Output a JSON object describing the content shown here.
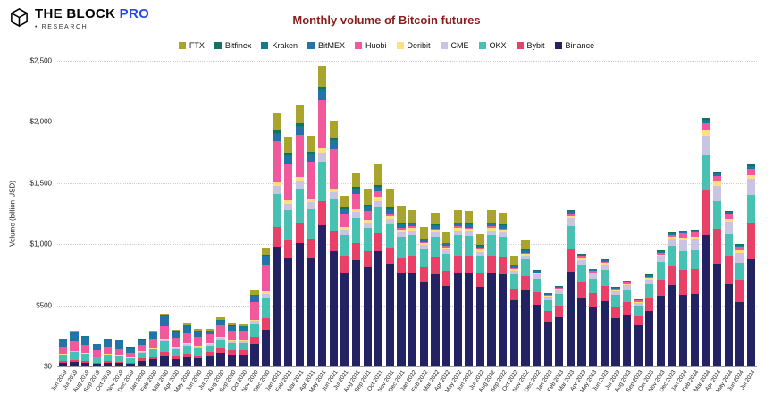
{
  "header": {
    "logo": {
      "brand": "THE BLOCK",
      "brand_accent": "PRO",
      "sub": "• RESEARCH"
    }
  },
  "chart_data": {
    "type": "bar",
    "stacked": true,
    "title": "Monthly volume of Bitcoin futures",
    "xlabel": "",
    "ylabel": "Volume (billion USD)",
    "ylim": [
      0,
      2500
    ],
    "y_ticks": [
      "$0",
      "$500",
      "$1,000",
      "$1,500",
      "$2,000",
      "$2,500"
    ],
    "grid": "horizontal-dotted",
    "legend_position": "top",
    "stack_order_bottom_to_top": [
      "Binance",
      "Bybit",
      "OKX",
      "CME",
      "Deribit",
      "Huobi",
      "BitMEX",
      "Kraken",
      "Bitfinex",
      "FTX"
    ],
    "title_color": "#8b1d1d",
    "categories": [
      "Jun 2019",
      "Jul 2019",
      "Aug 2019",
      "Sep 2019",
      "Oct 2019",
      "Nov 2019",
      "Dec 2019",
      "Jan 2020",
      "Feb 2020",
      "Mar 2020",
      "Apr 2020",
      "May 2020",
      "Jun 2020",
      "Jul 2020",
      "Aug 2020",
      "Sep 2020",
      "Oct 2020",
      "Nov 2020",
      "Dec 2020",
      "Jan 2021",
      "Feb 2021",
      "Mar 2021",
      "Apr 2021",
      "May 2021",
      "Jun 2021",
      "Jul 2021",
      "Aug 2021",
      "Sep 2021",
      "Oct 2021",
      "Nov 2021",
      "Dec 2021",
      "Jan 2022",
      "Feb 2022",
      "Mar 2022",
      "Apr 2022",
      "May 2022",
      "Jun 2022",
      "Jul 2022",
      "Aug 2022",
      "Sep 2022",
      "Oct 2022",
      "Nov 2022",
      "Dec 2022",
      "Jan 2023",
      "Feb 2023",
      "Mar 2023",
      "Apr 2023",
      "May 2023",
      "Jun 2023",
      "Jul 2023",
      "Aug 2023",
      "Sep 2023",
      "Oct 2023",
      "Nov 2023",
      "Dec 2023",
      "Jan 2024",
      "Feb 2024",
      "Mar 2024",
      "Apr 2024",
      "May 2024",
      "Jun 2024",
      "Jul 2024"
    ],
    "series": [
      {
        "name": "FTX",
        "color": "#a9a42b",
        "values": [
          1,
          2,
          2,
          1,
          1,
          2,
          1,
          6,
          7,
          11,
          9,
          11,
          10,
          14,
          18,
          16,
          15,
          31,
          53,
          147,
          133,
          151,
          133,
          171,
          141,
          98,
          111,
          128,
          162,
          151,
          144,
          104,
          92,
          100,
          88,
          104,
          102,
          88,
          104,
          100,
          72,
          74,
          0,
          0,
          0,
          0,
          0,
          0,
          0,
          0,
          0,
          0,
          0,
          0,
          0,
          0,
          0,
          0,
          0,
          0,
          0,
          0
        ]
      },
      {
        "name": "Bitfinex",
        "color": "#15715f",
        "values": [
          2,
          3,
          2,
          2,
          2,
          2,
          2,
          2,
          3,
          4,
          3,
          3,
          3,
          3,
          4,
          3,
          3,
          6,
          9,
          21,
          19,
          21,
          19,
          25,
          20,
          14,
          16,
          15,
          17,
          15,
          13,
          6,
          6,
          6,
          5,
          6,
          6,
          5,
          6,
          6,
          4,
          5,
          4,
          3,
          4,
          10,
          7,
          6,
          7,
          4,
          4,
          3,
          5,
          6,
          7,
          7,
          6,
          12,
          9,
          8,
          6,
          10
        ]
      },
      {
        "name": "Kraken",
        "color": "#0e7e8a",
        "values": [
          1,
          1,
          1,
          1,
          1,
          1,
          1,
          1,
          1,
          2,
          1,
          2,
          1,
          2,
          2,
          2,
          2,
          3,
          5,
          10,
          9,
          11,
          9,
          12,
          10,
          7,
          8,
          7,
          8,
          7,
          7,
          6,
          6,
          6,
          5,
          6,
          6,
          5,
          6,
          6,
          4,
          5,
          4,
          3,
          3,
          6,
          5,
          4,
          5,
          3,
          4,
          3,
          4,
          5,
          6,
          7,
          7,
          12,
          9,
          8,
          6,
          10
        ]
      },
      {
        "name": "BitMEX",
        "color": "#2274a8",
        "values": [
          64,
          81,
          70,
          51,
          64,
          60,
          44,
          44,
          55,
          82,
          54,
          61,
          52,
          31,
          40,
          35,
          34,
          56,
          78,
          62,
          56,
          64,
          57,
          74,
          60,
          28,
          32,
          29,
          33,
          29,
          26,
          19,
          17,
          19,
          17,
          19,
          19,
          16,
          19,
          19,
          14,
          15,
          12,
          6,
          7,
          13,
          9,
          8,
          9,
          7,
          7,
          6,
          8,
          10,
          11,
          9,
          9,
          16,
          13,
          10,
          8,
          13
        ]
      },
      {
        "name": "Huobi",
        "color": "#f2599d",
        "values": [
          60,
          75,
          65,
          48,
          60,
          56,
          42,
          55,
          70,
          103,
          72,
          84,
          73,
          71,
          92,
          80,
          79,
          140,
          210,
          333,
          301,
          342,
          302,
          394,
          322,
          112,
          126,
          73,
          50,
          22,
          13,
          13,
          11,
          13,
          11,
          13,
          13,
          11,
          13,
          13,
          9,
          10,
          8,
          9,
          10,
          19,
          14,
          12,
          13,
          10,
          11,
          8,
          11,
          14,
          17,
          33,
          34,
          61,
          48,
          38,
          30,
          50
        ]
      },
      {
        "name": "Deribit",
        "color": "#ffdf7e",
        "values": [
          5,
          6,
          5,
          4,
          5,
          4,
          3,
          5,
          6,
          9,
          6,
          7,
          6,
          6,
          8,
          7,
          7,
          12,
          19,
          31,
          28,
          32,
          28,
          37,
          30,
          21,
          24,
          22,
          25,
          22,
          20,
          19,
          17,
          19,
          17,
          19,
          19,
          16,
          19,
          19,
          14,
          15,
          12,
          9,
          10,
          19,
          14,
          12,
          13,
          10,
          11,
          8,
          11,
          14,
          17,
          22,
          22,
          41,
          32,
          25,
          20,
          33
        ]
      },
      {
        "name": "CME",
        "color": "#c9c4e4",
        "values": [
          5,
          6,
          5,
          4,
          5,
          4,
          3,
          7,
          9,
          13,
          9,
          10,
          9,
          12,
          16,
          14,
          14,
          25,
          39,
          62,
          56,
          64,
          57,
          74,
          60,
          42,
          47,
          44,
          50,
          44,
          40,
          38,
          34,
          38,
          33,
          38,
          38,
          32,
          38,
          38,
          27,
          31,
          30,
          30,
          33,
          64,
          46,
          40,
          44,
          33,
          35,
          28,
          38,
          48,
          55,
          89,
          90,
          162,
          127,
          102,
          80,
          132
        ]
      },
      {
        "name": "OKX",
        "color": "#47c1b1",
        "values": [
          50,
          64,
          55,
          41,
          50,
          47,
          35,
          46,
          58,
          86,
          60,
          70,
          61,
          53,
          68,
          60,
          59,
          105,
          160,
          270,
          244,
          278,
          246,
          320,
          261,
          182,
          205,
          189,
          215,
          189,
          172,
          166,
          148,
          164,
          143,
          166,
          165,
          140,
          166,
          164,
          117,
          134,
          111,
          90,
          99,
          192,
          138,
          120,
          132,
          98,
          105,
          83,
          113,
          143,
          165,
          155,
          157,
          284,
          223,
          178,
          140,
          231
        ]
      },
      {
        "name": "Bybit",
        "color": "#e84067",
        "values": [
          14,
          17,
          15,
          11,
          14,
          13,
          10,
          18,
          23,
          34,
          24,
          28,
          25,
          31,
          40,
          35,
          35,
          62,
          97,
          166,
          150,
          171,
          151,
          197,
          161,
          126,
          142,
          131,
          149,
          131,
          119,
          141,
          125,
          139,
          121,
          141,
          140,
          119,
          141,
          139,
          99,
          113,
          104,
          84,
          92,
          179,
          129,
          112,
          123,
          91,
          98,
          77,
          105,
          133,
          154,
          200,
          202,
          365,
          286,
          229,
          180,
          297
        ]
      },
      {
        "name": "Binance",
        "color": "#232263",
        "values": [
          28,
          35,
          30,
          22,
          28,
          26,
          19,
          46,
          58,
          86,
          62,
          74,
          65,
          87,
          112,
          98,
          97,
          180,
          300,
          978,
          884,
          1006,
          888,
          1156,
          945,
          770,
          869,
          812,
          941,
          840,
          766,
          768,
          684,
          756,
          660,
          768,
          762,
          648,
          768,
          756,
          540,
          628,
          505,
          366,
          402,
          778,
          558,
          486,
          534,
          394,
          425,
          334,
          455,
          577,
          668,
          588,
          593,
          1077,
          843,
          672,
          530,
          874
        ]
      }
    ]
  }
}
